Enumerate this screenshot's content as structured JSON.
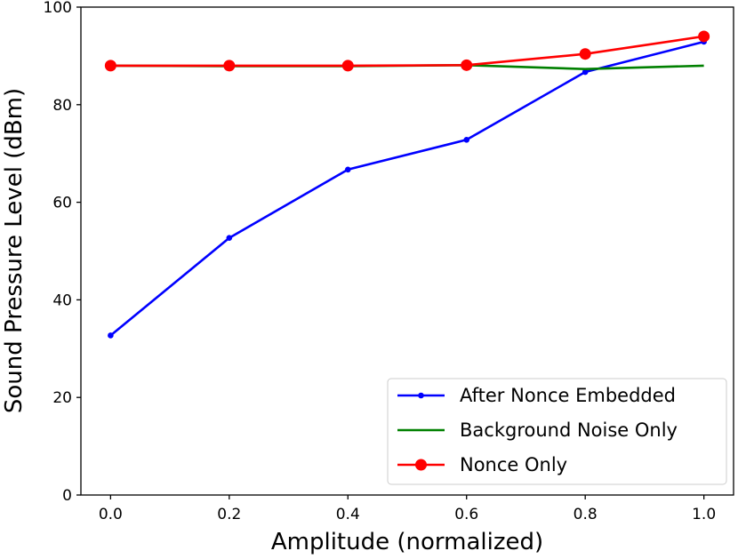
{
  "chart_data": {
    "type": "line",
    "title": "",
    "xlabel": "Amplitude (normalized)",
    "ylabel": "Sound Pressure Level (dBm)",
    "xlim": [
      -0.05,
      1.05
    ],
    "ylim": [
      0,
      100
    ],
    "xticks": [
      0.0,
      0.2,
      0.4,
      0.6,
      0.8,
      1.0
    ],
    "xtick_labels": [
      "0.0",
      "0.2",
      "0.4",
      "0.6",
      "0.8",
      "1.0"
    ],
    "yticks": [
      0,
      20,
      40,
      60,
      80,
      100
    ],
    "ytick_labels": [
      "0",
      "20",
      "40",
      "60",
      "80",
      "100"
    ],
    "grid": false,
    "legend_position": "lower-right",
    "x": [
      0.0,
      0.2,
      0.4,
      0.6,
      0.8,
      1.0
    ],
    "series": [
      {
        "name": "After Nonce Embedded",
        "color": "#0000ff",
        "marker": "small-dot",
        "values": [
          32.7,
          52.7,
          66.7,
          72.8,
          86.7,
          92.9
        ]
      },
      {
        "name": "Background Noise Only",
        "color": "#008000",
        "marker": "none",
        "values": [
          88.0,
          87.9,
          87.9,
          88.1,
          87.3,
          88.0
        ]
      },
      {
        "name": "Nonce Only",
        "color": "#ff0000",
        "marker": "large-dot",
        "values": [
          88.0,
          88.0,
          88.0,
          88.1,
          90.4,
          94.0
        ]
      }
    ]
  }
}
